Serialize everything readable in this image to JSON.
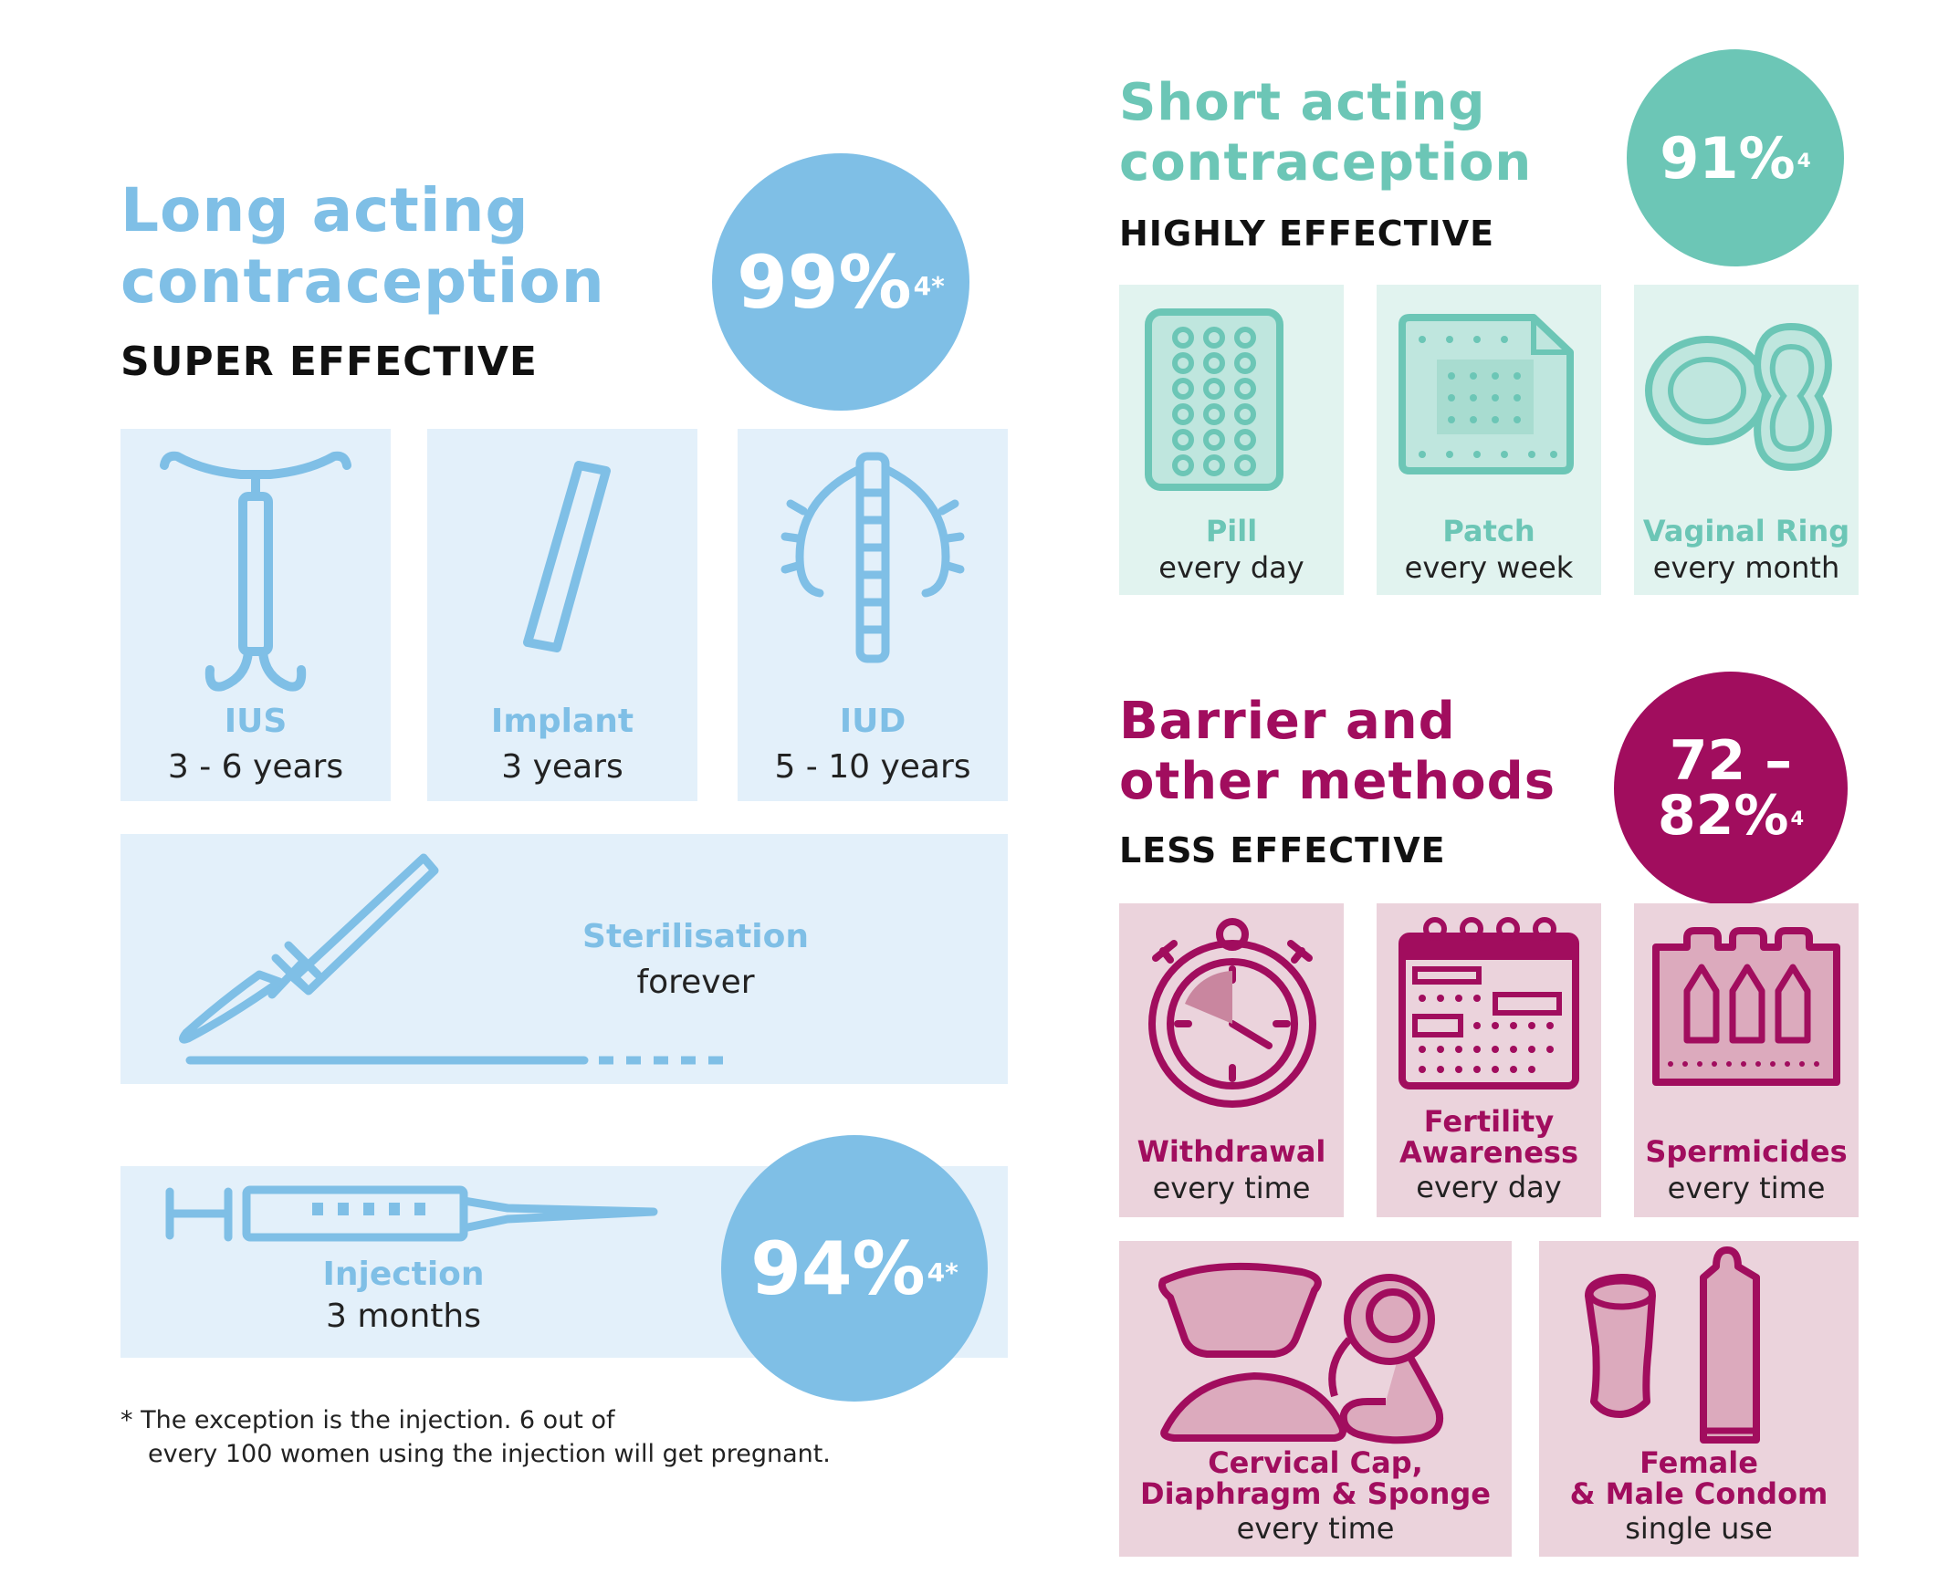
{
  "colors": {
    "blue": "#7fbfe6",
    "blue_dark": "#6bb4e0",
    "blue_tile": "#e3f0fa",
    "green": "#6cc6b6",
    "green_tile": "#e1f3ef",
    "magenta": "#a10d5e",
    "pink_tile": "#ebd3dc",
    "text": "#111111"
  },
  "long": {
    "title_line1": "Long acting",
    "title_line2": "contraception",
    "subtitle": "SUPER EFFECTIVE",
    "badge_value": "99%",
    "badge_sup": "4*",
    "methods": [
      {
        "name": "IUS",
        "frequency": "3 - 6 years",
        "icon": "ius-icon"
      },
      {
        "name": "Implant",
        "frequency": "3 years",
        "icon": "implant-icon"
      },
      {
        "name": "IUD",
        "frequency": "5 - 10 years",
        "icon": "iud-icon"
      }
    ],
    "sterilisation": {
      "name": "Sterilisation",
      "frequency": "forever",
      "icon": "scalpel-icon"
    },
    "injection": {
      "name": "Injection",
      "frequency": "3 months",
      "icon": "syringe-icon",
      "badge_value": "94%",
      "badge_sup": "4*"
    },
    "footnote_line1": "* The exception is the injection. 6 out of",
    "footnote_line2": "every 100 women using the injection will get pregnant."
  },
  "short": {
    "title_line1": "Short acting",
    "title_line2": "contraception",
    "subtitle": "HIGHLY EFFECTIVE",
    "badge_value": "91%",
    "badge_sup": "4",
    "methods": [
      {
        "name": "Pill",
        "frequency": "every day",
        "icon": "pill-pack-icon"
      },
      {
        "name": "Patch",
        "frequency": "every week",
        "icon": "patch-icon"
      },
      {
        "name": "Vaginal Ring",
        "frequency": "every month",
        "icon": "vaginal-ring-icon"
      }
    ]
  },
  "barrier": {
    "title_line1": "Barrier and",
    "title_line2": "other methods",
    "subtitle": "LESS EFFECTIVE",
    "badge_line1": "72 –",
    "badge_line2": "82%",
    "badge_sup": "4",
    "methods": [
      {
        "name": "Withdrawal",
        "frequency": "every time",
        "icon": "stopwatch-icon"
      },
      {
        "name_line1": "Fertility",
        "name_line2": "Awareness",
        "frequency": "every day",
        "icon": "calendar-icon"
      },
      {
        "name": "Spermicides",
        "frequency": "every time",
        "icon": "spermicide-icon"
      }
    ],
    "methods2": [
      {
        "name_line1": "Cervical Cap,",
        "name_line2": "Diaphragm & Sponge",
        "frequency": "every time",
        "icon": "cervical-cap-icon"
      },
      {
        "name_line1": "Female",
        "name_line2": "& Male Condom",
        "frequency": "single use",
        "icon": "condom-icon"
      }
    ]
  }
}
